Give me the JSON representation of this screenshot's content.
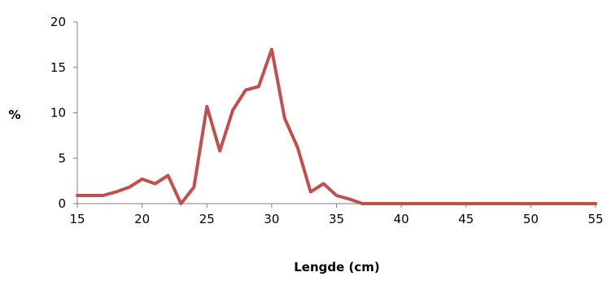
{
  "chart_data": {
    "type": "line",
    "xlabel": "Lengde (cm)",
    "ylabel": "%",
    "xlim": [
      15,
      55
    ],
    "ylim": [
      0,
      20
    ],
    "x_ticks": [
      "15",
      "20",
      "25",
      "30",
      "35",
      "40",
      "45",
      "50",
      "55"
    ],
    "y_ticks": [
      "0",
      "5",
      "10",
      "15",
      "20"
    ],
    "grid": false,
    "legend": "none",
    "series": [
      {
        "color": "#c0504d",
        "x": [
          15,
          16,
          17,
          18,
          19,
          20,
          21,
          22,
          23,
          24,
          25,
          26,
          27,
          28,
          29,
          30,
          31,
          32,
          33,
          34,
          35,
          36,
          37,
          38,
          39,
          40,
          41,
          42,
          43,
          44,
          45,
          46,
          47,
          48,
          49,
          50,
          51,
          52,
          53,
          54,
          55
        ],
        "y": [
          0.9,
          0.9,
          0.9,
          1.3,
          1.8,
          2.7,
          2.2,
          3.1,
          0.0,
          1.8,
          10.7,
          5.8,
          10.3,
          12.5,
          12.9,
          17.0,
          9.4,
          6.2,
          1.3,
          2.2,
          0.9,
          0.5,
          0.0,
          0.0,
          0.0,
          0.0,
          0.0,
          0.0,
          0.0,
          0.0,
          0.0,
          0.0,
          0.0,
          0.0,
          0.0,
          0.0,
          0.0,
          0.0,
          0.0,
          0.0,
          0.0
        ]
      }
    ]
  }
}
